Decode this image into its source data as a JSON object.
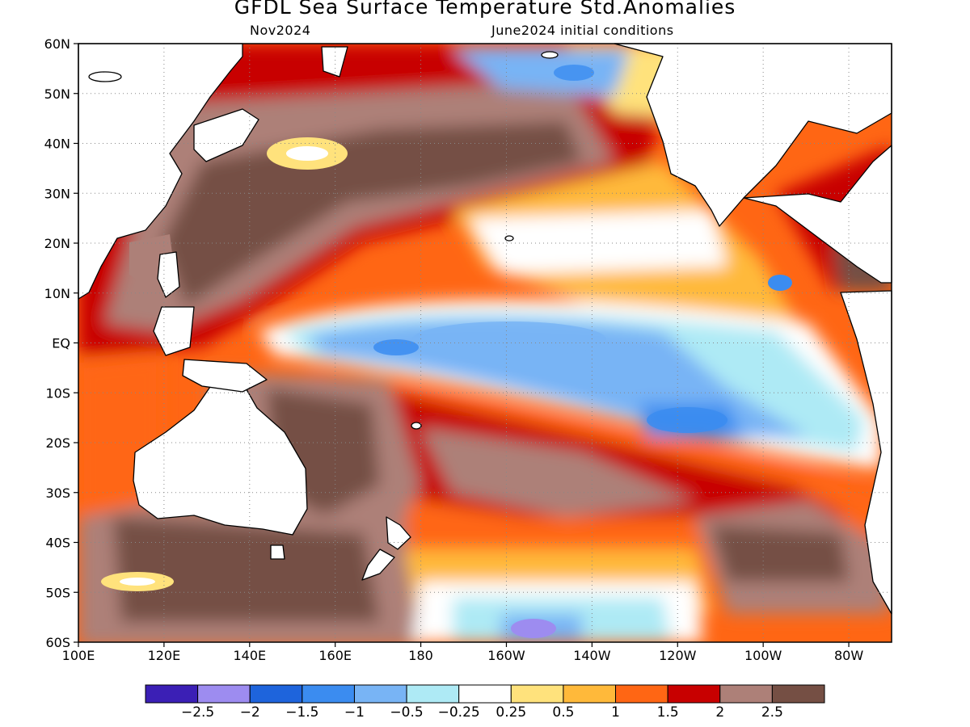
{
  "title": "GFDL Sea Surface Temperature Std.Anomalies",
  "subtitle_left": "Nov2024",
  "subtitle_right": "June2024 initial conditions",
  "map": {
    "lon_range": [
      100,
      290
    ],
    "lat_range": [
      -60,
      60
    ],
    "lat_ticks": [
      {
        "value": 60,
        "label": "60N"
      },
      {
        "value": 50,
        "label": "50N"
      },
      {
        "value": 40,
        "label": "40N"
      },
      {
        "value": 30,
        "label": "30N"
      },
      {
        "value": 20,
        "label": "20N"
      },
      {
        "value": 10,
        "label": "10N"
      },
      {
        "value": 0,
        "label": "EQ"
      },
      {
        "value": -10,
        "label": "10S"
      },
      {
        "value": -20,
        "label": "20S"
      },
      {
        "value": -30,
        "label": "30S"
      },
      {
        "value": -40,
        "label": "40S"
      },
      {
        "value": -50,
        "label": "50S"
      },
      {
        "value": -60,
        "label": "60S"
      }
    ],
    "lon_ticks": [
      {
        "value": 100,
        "label": "100E"
      },
      {
        "value": 120,
        "label": "120E"
      },
      {
        "value": 140,
        "label": "140E"
      },
      {
        "value": 160,
        "label": "160E"
      },
      {
        "value": 180,
        "label": "180"
      },
      {
        "value": 200,
        "label": "160W"
      },
      {
        "value": 220,
        "label": "140W"
      },
      {
        "value": 240,
        "label": "120W"
      },
      {
        "value": 260,
        "label": "100W"
      },
      {
        "value": 280,
        "label": "80W"
      }
    ],
    "grid": "dotted",
    "anomaly_regions": [
      {
        "name": "north-pacific-warm",
        "lon": 180,
        "lat": 40,
        "value": 2.5
      },
      {
        "name": "western-pacific-warm",
        "lon": 140,
        "lat": 25,
        "value": 2.5
      },
      {
        "name": "equatorial-cold-tongue",
        "lon": 210,
        "lat": -2,
        "value": -1
      },
      {
        "name": "southeast-pacific-cool",
        "lon": 245,
        "lat": -17,
        "value": -1
      },
      {
        "name": "south-pacific-warm-band",
        "lon": 215,
        "lat": -30,
        "value": 2
      },
      {
        "name": "australia-tasman-warm",
        "lon": 165,
        "lat": -30,
        "value": 2.5
      },
      {
        "name": "southern-ocean-warm",
        "lon": 130,
        "lat": -52,
        "value": 2.5
      },
      {
        "name": "northeast-pacific-mild",
        "lon": 245,
        "lat": 25,
        "value": 0.5
      },
      {
        "name": "gulf-of-alaska-cool",
        "lon": 215,
        "lat": 54,
        "value": -0.5
      },
      {
        "name": "far-south-cold",
        "lon": 210,
        "lat": -57,
        "value": -1.5
      }
    ]
  },
  "colorbar": {
    "colors": [
      "#3b1fb5",
      "#9d8cf0",
      "#1e64dc",
      "#3b8cf0",
      "#78b4f5",
      "#aeeaf5",
      "#ffffff",
      "#ffe27c",
      "#ffb93a",
      "#ff6614",
      "#c80000",
      "#ad8078",
      "#754f44"
    ],
    "labels": [
      "−2.5",
      "−2",
      "−1.5",
      "−1",
      "−0.5",
      "−0.25",
      "0.25",
      "0.5",
      "1",
      "1.5",
      "2",
      "2.5"
    ]
  }
}
